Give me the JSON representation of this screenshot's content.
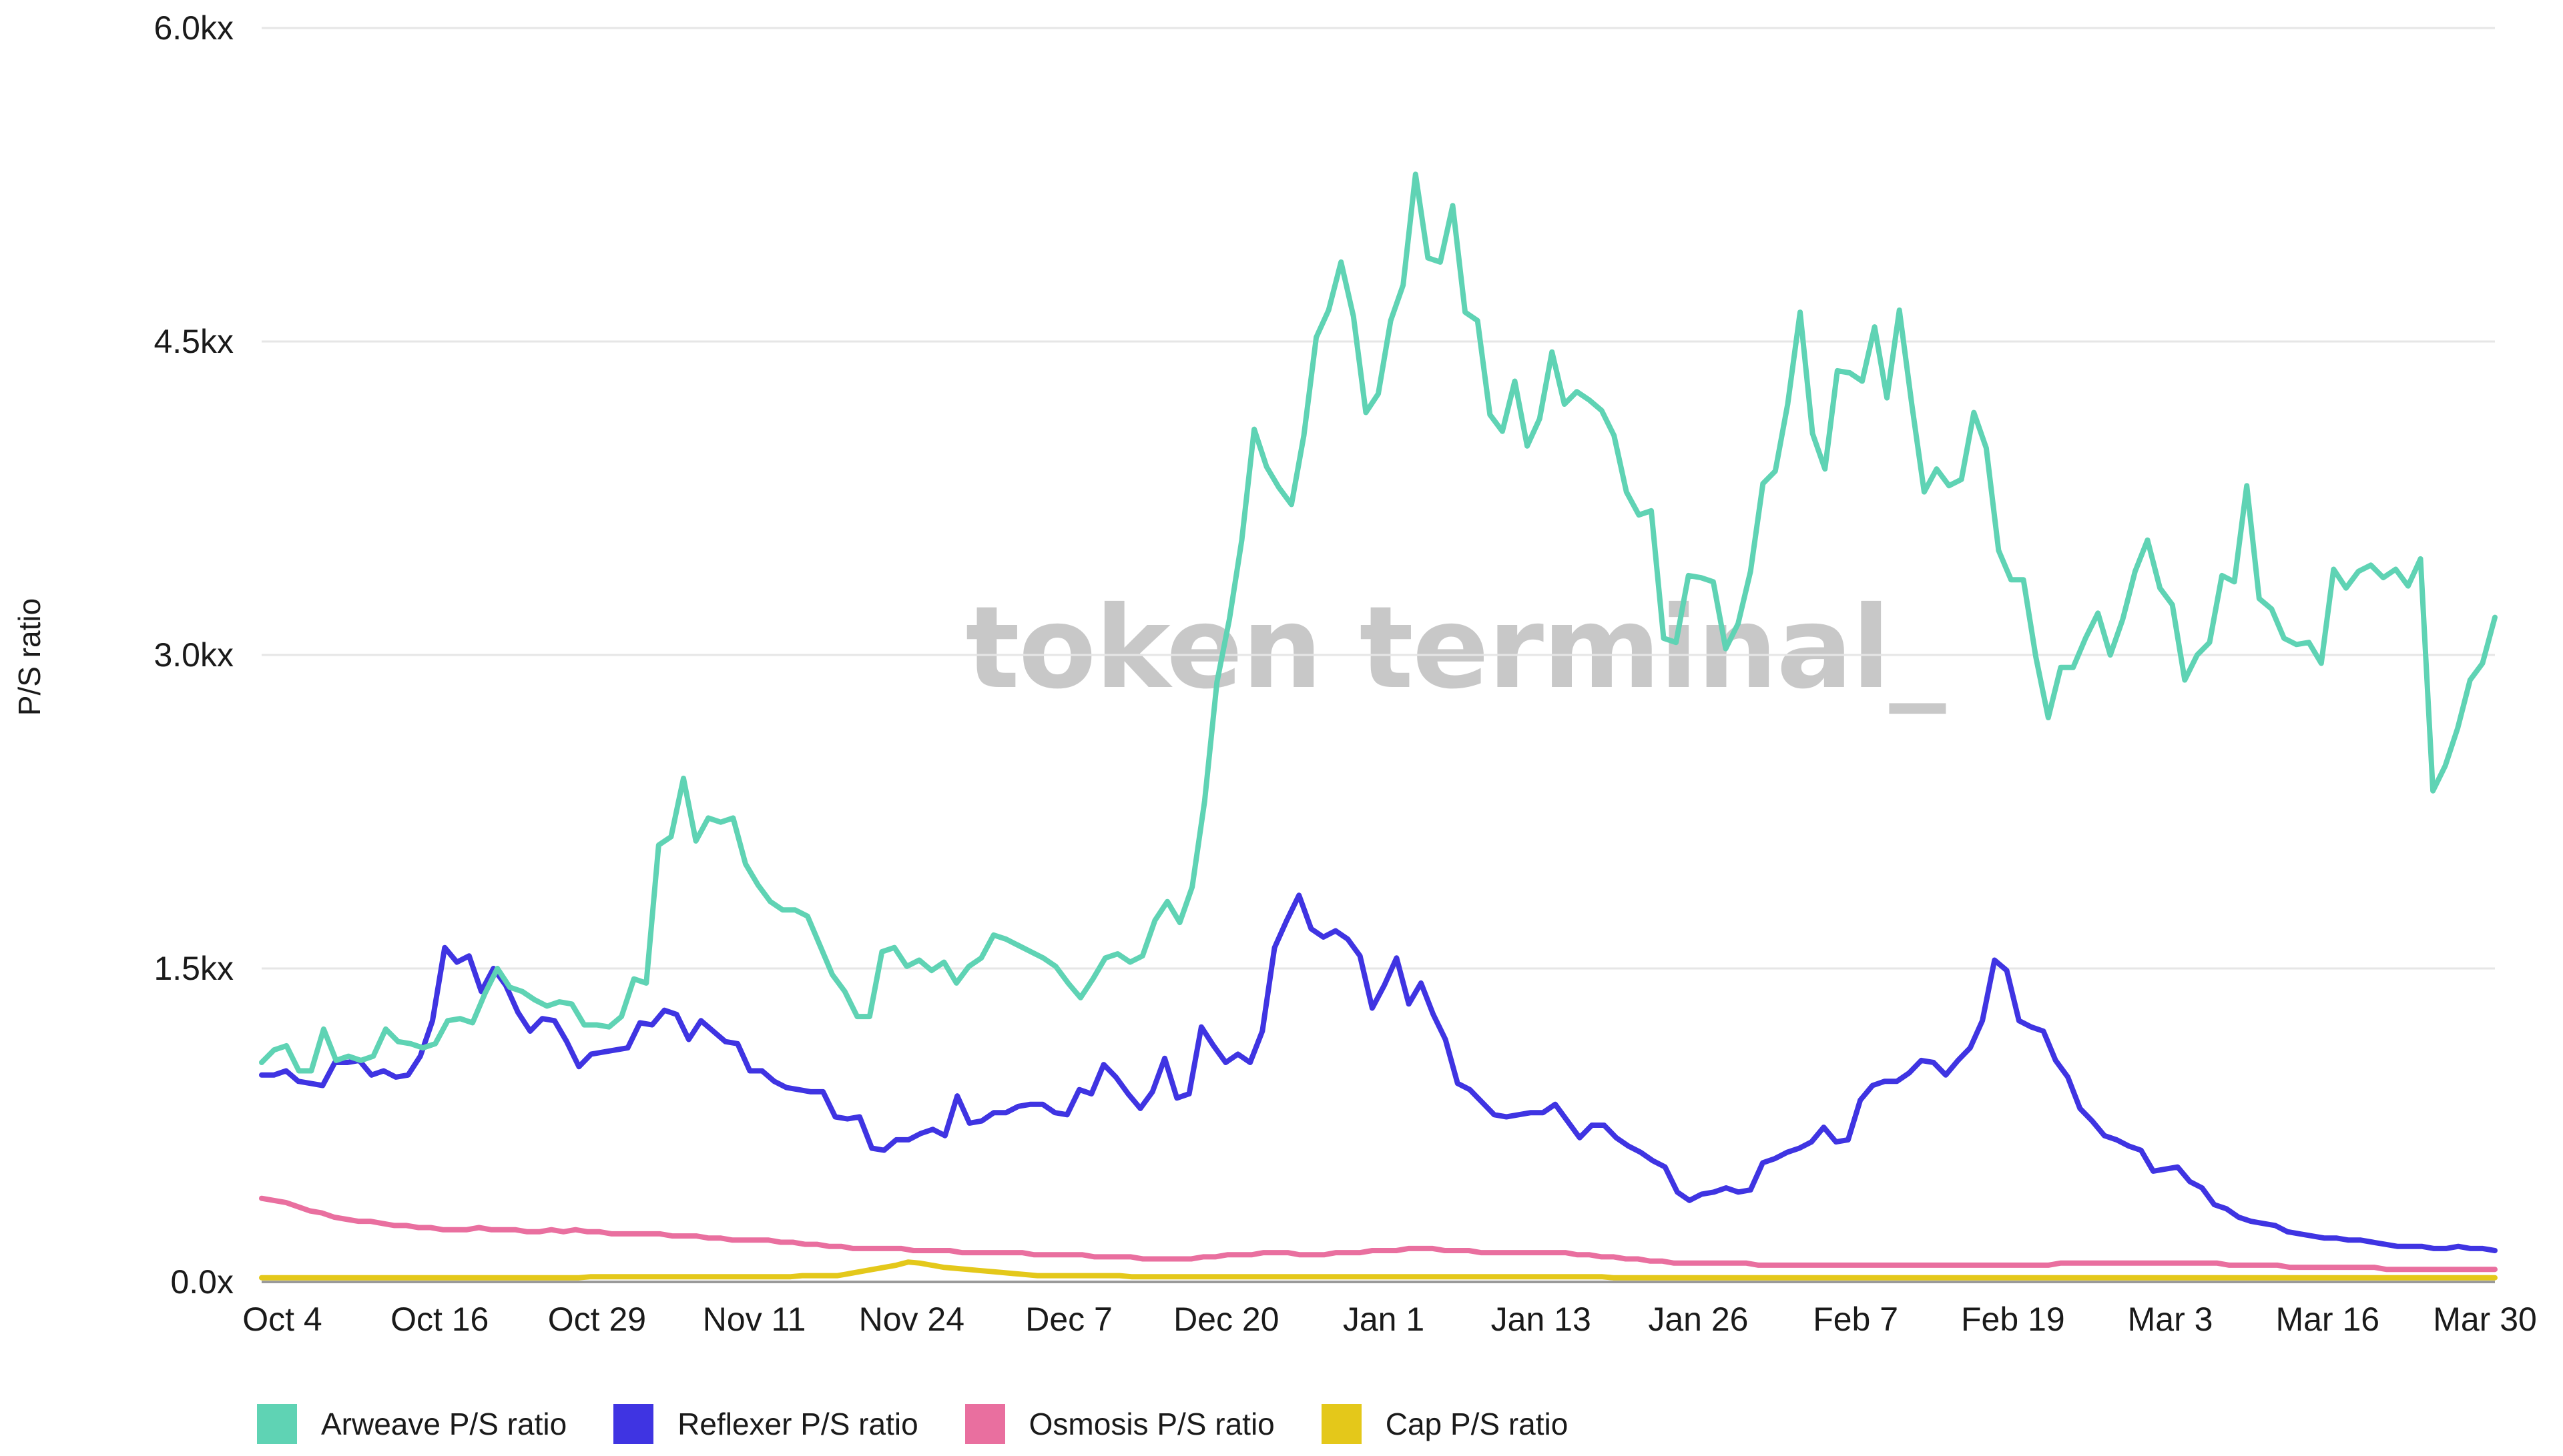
{
  "chart_data": {
    "type": "line",
    "title": "",
    "xlabel": "",
    "ylabel": "P/S ratio",
    "watermark": "token terminal_",
    "ylim": [
      0,
      6000
    ],
    "yticks": [
      "0.0x",
      "1.5kx",
      "3.0kx",
      "4.5kx",
      "6.0kx"
    ],
    "ytick_values": [
      0,
      1500,
      3000,
      4500,
      6000
    ],
    "xticks": [
      "Oct 4",
      "Oct 16",
      "Oct 29",
      "Nov 11",
      "Nov 24",
      "Dec 7",
      "Dec 20",
      "Jan 1",
      "Jan 13",
      "Jan 26",
      "Feb 7",
      "Feb 19",
      "Mar 3",
      "Mar 16",
      "Mar 30"
    ],
    "x_start": "Oct 4",
    "x_end": "Mar 30",
    "grid": true,
    "legend_position": "bottom",
    "series": [
      {
        "name": "Arweave P/S ratio",
        "color": "#5fd3b4",
        "values": [
          1050,
          1110,
          1130,
          1010,
          1010,
          1210,
          1060,
          1080,
          1060,
          1080,
          1210,
          1150,
          1140,
          1120,
          1140,
          1250,
          1260,
          1240,
          1380,
          1500,
          1410,
          1390,
          1350,
          1320,
          1340,
          1330,
          1230,
          1230,
          1220,
          1270,
          1450,
          1430,
          2090,
          2130,
          2410,
          2110,
          2220,
          2200,
          2220,
          2000,
          1900,
          1820,
          1780,
          1780,
          1750,
          1610,
          1470,
          1390,
          1270,
          1270,
          1580,
          1600,
          1510,
          1540,
          1490,
          1530,
          1430,
          1510,
          1550,
          1660,
          1640,
          1610,
          1580,
          1550,
          1510,
          1430,
          1360,
          1450,
          1550,
          1570,
          1530,
          1560,
          1730,
          1820,
          1720,
          1890,
          2300,
          2870,
          3170,
          3550,
          4080,
          3900,
          3800,
          3720,
          4050,
          4520,
          4650,
          4880,
          4620,
          4160,
          4250,
          4600,
          4770,
          5300,
          4900,
          4880,
          5150,
          4640,
          4600,
          4150,
          4070,
          4310,
          4000,
          4130,
          4450,
          4200,
          4260,
          4220,
          4170,
          4050,
          3780,
          3670,
          3690,
          3080,
          3060,
          3380,
          3370,
          3350,
          3030,
          3150,
          3400,
          3820,
          3880,
          4200,
          4640,
          4060,
          3890,
          4360,
          4350,
          4310,
          4570,
          4230,
          4650,
          4200,
          3780,
          3890,
          3810,
          3840,
          4160,
          3990,
          3500,
          3360,
          3360,
          2990,
          2700,
          2940,
          2940,
          3080,
          3200,
          3000,
          3170,
          3400,
          3550,
          3320,
          3240,
          2880,
          3000,
          3060,
          3380,
          3350,
          3810,
          3270,
          3220,
          3080,
          3050,
          3060,
          2960,
          3410,
          3320,
          3400,
          3430,
          3370,
          3410,
          3330,
          3460,
          2350,
          2470,
          2650,
          2880,
          2960,
          3180
        ]
      },
      {
        "name": "Reflexer P/S ratio",
        "color": "#3f34e2",
        "values": [
          990,
          990,
          1010,
          960,
          950,
          940,
          1050,
          1050,
          1060,
          990,
          1010,
          980,
          990,
          1080,
          1250,
          1600,
          1530,
          1560,
          1390,
          1500,
          1420,
          1290,
          1200,
          1260,
          1250,
          1150,
          1030,
          1090,
          1100,
          1110,
          1120,
          1240,
          1230,
          1300,
          1280,
          1160,
          1250,
          1200,
          1150,
          1140,
          1010,
          1010,
          960,
          930,
          920,
          910,
          910,
          790,
          780,
          790,
          640,
          630,
          680,
          680,
          710,
          730,
          700,
          890,
          760,
          770,
          810,
          810,
          840,
          850,
          850,
          810,
          800,
          920,
          900,
          1040,
          980,
          900,
          830,
          910,
          1070,
          880,
          900,
          1220,
          1130,
          1050,
          1090,
          1050,
          1200,
          1600,
          1730,
          1850,
          1690,
          1650,
          1680,
          1640,
          1560,
          1310,
          1420,
          1550,
          1330,
          1430,
          1280,
          1160,
          950,
          920,
          860,
          800,
          790,
          800,
          810,
          810,
          850,
          770,
          690,
          750,
          750,
          690,
          650,
          620,
          580,
          550,
          430,
          390,
          420,
          430,
          450,
          430,
          440,
          570,
          590,
          620,
          640,
          670,
          740,
          670,
          680,
          870,
          940,
          960,
          960,
          1000,
          1060,
          1050,
          990,
          1060,
          1120,
          1250,
          1540,
          1490,
          1250,
          1220,
          1200,
          1060,
          980,
          830,
          770,
          700,
          680,
          650,
          630,
          530,
          540,
          550,
          480,
          450,
          370,
          350,
          310,
          290,
          280,
          270,
          240,
          230,
          220,
          210,
          210,
          200,
          200,
          190,
          180,
          170,
          170,
          170,
          160,
          160,
          170,
          160,
          160,
          150
        ]
      },
      {
        "name": "Osmosis P/S ratio",
        "color": "#e96f9f",
        "values": [
          400,
          390,
          380,
          360,
          340,
          330,
          310,
          300,
          290,
          290,
          280,
          270,
          270,
          260,
          260,
          250,
          250,
          250,
          260,
          250,
          250,
          250,
          240,
          240,
          250,
          240,
          250,
          240,
          240,
          230,
          230,
          230,
          230,
          230,
          220,
          220,
          220,
          210,
          210,
          200,
          200,
          200,
          200,
          190,
          190,
          180,
          180,
          170,
          170,
          160,
          160,
          160,
          160,
          160,
          150,
          150,
          150,
          150,
          140,
          140,
          140,
          140,
          140,
          140,
          130,
          130,
          130,
          130,
          130,
          120,
          120,
          120,
          120,
          110,
          110,
          110,
          110,
          110,
          120,
          120,
          130,
          130,
          130,
          140,
          140,
          140,
          130,
          130,
          130,
          140,
          140,
          140,
          150,
          150,
          150,
          160,
          160,
          160,
          150,
          150,
          150,
          140,
          140,
          140,
          140,
          140,
          140,
          140,
          140,
          130,
          130,
          120,
          120,
          110,
          110,
          100,
          100,
          90,
          90,
          90,
          90,
          90,
          90,
          90,
          80,
          80,
          80,
          80,
          80,
          80,
          80,
          80,
          80,
          80,
          80,
          80,
          80,
          80,
          80,
          80,
          80,
          80,
          80,
          80,
          80,
          80,
          80,
          80,
          80,
          90,
          90,
          90,
          90,
          90,
          90,
          90,
          90,
          90,
          90,
          90,
          90,
          90,
          90,
          80,
          80,
          80,
          80,
          80,
          70,
          70,
          70,
          70,
          70,
          70,
          70,
          70,
          60,
          60,
          60,
          60,
          60,
          60,
          60,
          60,
          60,
          60
        ]
      },
      {
        "name": "Cap P/S ratio",
        "color": "#e4c81a",
        "values": [
          20,
          20,
          20,
          20,
          20,
          20,
          20,
          20,
          20,
          20,
          20,
          20,
          20,
          20,
          20,
          20,
          20,
          20,
          20,
          20,
          20,
          20,
          20,
          20,
          20,
          20,
          20,
          20,
          25,
          25,
          25,
          25,
          25,
          25,
          25,
          25,
          25,
          25,
          25,
          25,
          25,
          25,
          25,
          25,
          25,
          25,
          30,
          30,
          30,
          30,
          40,
          50,
          60,
          70,
          80,
          95,
          90,
          80,
          70,
          65,
          60,
          55,
          50,
          45,
          40,
          35,
          30,
          30,
          30,
          30,
          30,
          30,
          30,
          30,
          25,
          25,
          25,
          25,
          25,
          25,
          25,
          25,
          25,
          25,
          25,
          25,
          25,
          25,
          25,
          25,
          25,
          25,
          25,
          25,
          25,
          25,
          25,
          25,
          25,
          25,
          25,
          25,
          25,
          25,
          25,
          25,
          25,
          25,
          25,
          25,
          25,
          25,
          25,
          25,
          25,
          20,
          20,
          20,
          20,
          20,
          20,
          20,
          20,
          20,
          20,
          20,
          20,
          20,
          20,
          20,
          20,
          20,
          20,
          20,
          20,
          20,
          20,
          20,
          20,
          20,
          20,
          20,
          20,
          20,
          20,
          20,
          20,
          20,
          20,
          20,
          20,
          20,
          20,
          20,
          20,
          20,
          20,
          20,
          20,
          20,
          20,
          20,
          20,
          20,
          20,
          20,
          20,
          20,
          20,
          20,
          20,
          20,
          20,
          20,
          20,
          20,
          20,
          20,
          20,
          20,
          20,
          20,
          20,
          20,
          20,
          20,
          20,
          20,
          20,
          20,
          20
        ]
      }
    ]
  }
}
